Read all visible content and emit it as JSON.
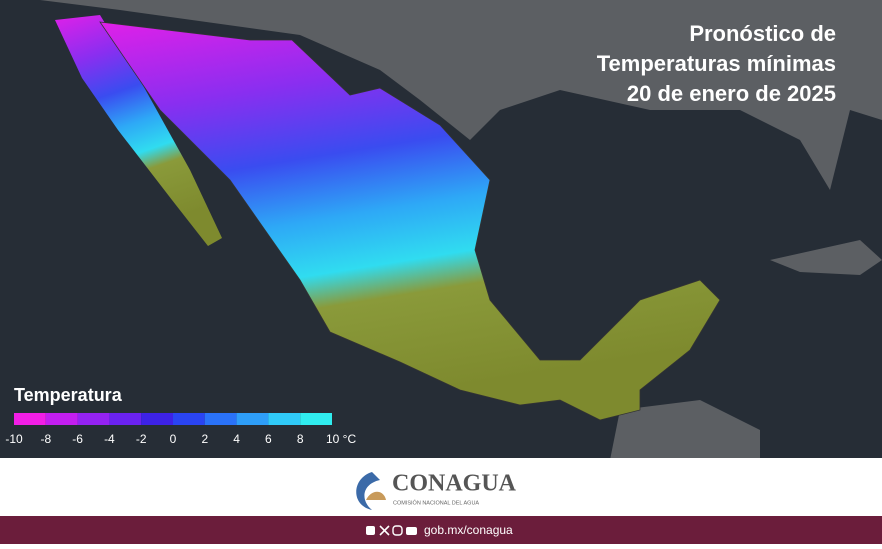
{
  "header": {
    "title_lines": [
      "Pronóstico de",
      "Temperaturas mínimas",
      "20 de enero de 2025"
    ]
  },
  "legend": {
    "title": "Temperatura",
    "colors": [
      "#f21ee6",
      "#c31ef0",
      "#9422f2",
      "#6a22f0",
      "#3d22e6",
      "#2a44f2",
      "#2a72f8",
      "#2e9ef8",
      "#30caf8",
      "#30ecef"
    ],
    "ticks": [
      "-10",
      "-8",
      "-6",
      "-4",
      "-2",
      "0",
      "2",
      "4",
      "6",
      "8",
      "10 °C"
    ]
  },
  "footer": {
    "brand": "CONAGUA",
    "subtitle": "COMISIÓN NACIONAL DEL AGUA",
    "link": "gob.mx/conagua"
  }
}
